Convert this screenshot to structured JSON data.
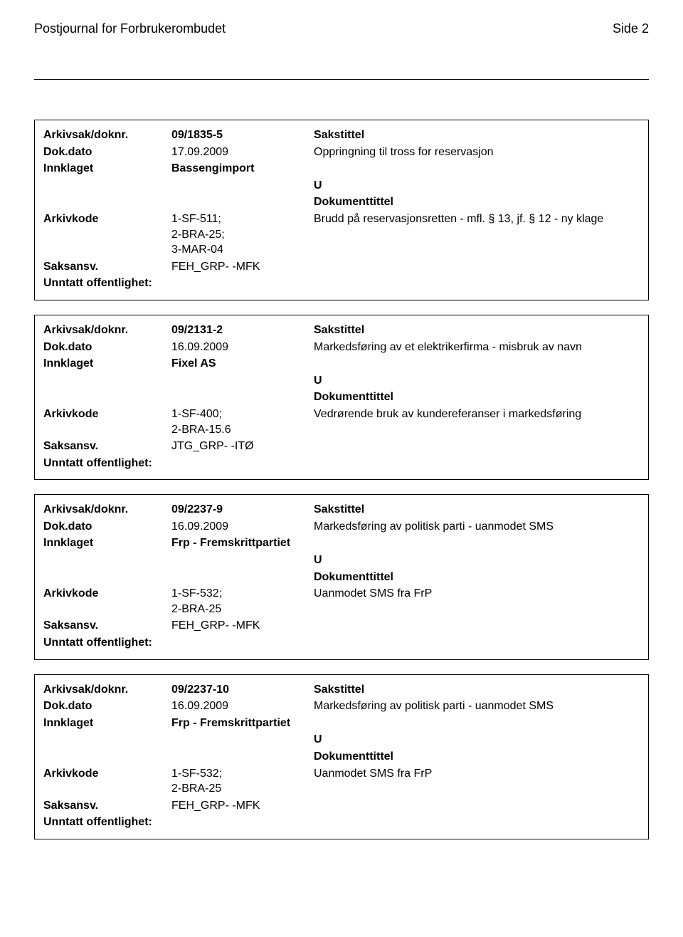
{
  "header": {
    "title": "Postjournal for Forbrukerombudet",
    "page": "Side 2"
  },
  "entries": [
    {
      "arkivsak_doknr": "09/1835-5",
      "sakstittel_label": "Sakstittel",
      "dok_dato": "17.09.2009",
      "sakstittel": "Oppringning til tross for reservasjon",
      "innklaget": "Bassengimport",
      "u": "U",
      "dokumenttittel_label": "Dokumenttittel",
      "arkivkode": "1-SF-511;\n2-BRA-25;\n3-MAR-04",
      "dokumenttittel": "Brudd på reservasjonsretten - mfl. § 13, jf. § 12 - ny klage",
      "saksansv": "FEH_GRP- -MFK"
    },
    {
      "arkivsak_doknr": "09/2131-2",
      "sakstittel_label": "Sakstittel",
      "dok_dato": "16.09.2009",
      "sakstittel": "Markedsføring av et elektrikerfirma - misbruk av navn",
      "innklaget": "Fixel AS",
      "u": "U",
      "dokumenttittel_label": "Dokumenttittel",
      "arkivkode": "1-SF-400;\n2-BRA-15.6",
      "dokumenttittel": "Vedrørende bruk av kundereferanser i markedsføring",
      "saksansv": "JTG_GRP- -ITØ"
    },
    {
      "arkivsak_doknr": "09/2237-9",
      "sakstittel_label": "Sakstittel",
      "dok_dato": "16.09.2009",
      "sakstittel": "Markedsføring av politisk parti - uanmodet SMS",
      "innklaget": "Frp - Fremskrittpartiet",
      "u": "U",
      "dokumenttittel_label": "Dokumenttittel",
      "arkivkode": "1-SF-532;\n2-BRA-25",
      "dokumenttittel": "Uanmodet SMS fra FrP",
      "saksansv": "FEH_GRP- -MFK"
    },
    {
      "arkivsak_doknr": "09/2237-10",
      "sakstittel_label": "Sakstittel",
      "dok_dato": "16.09.2009",
      "sakstittel": "Markedsføring av politisk parti - uanmodet SMS",
      "innklaget": "Frp - Fremskrittpartiet",
      "u": "U",
      "dokumenttittel_label": "Dokumenttittel",
      "arkivkode": "1-SF-532;\n2-BRA-25",
      "dokumenttittel": "Uanmodet SMS fra FrP",
      "saksansv": "FEH_GRP- -MFK"
    }
  ],
  "labels": {
    "arkivsak_doknr": "Arkivsak/doknr.",
    "dok_dato": "Dok.dato",
    "innklaget": "Innklaget",
    "arkivkode": "Arkivkode",
    "saksansv": "Saksansv.",
    "unntatt": "Unntatt offentlighet:"
  }
}
